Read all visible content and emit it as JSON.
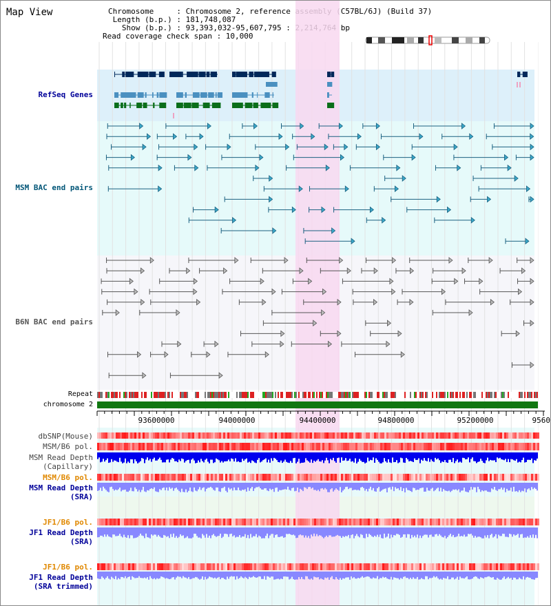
{
  "header": {
    "title": "Map View",
    "chromosome_line": "Chromosome     : Chromosome 2, reference assembly (C57BL/6J) (Build 37)",
    "length_line": " Length (b.p.) : 181,748,087",
    "show_line": "   Show (b.p.) : 93,393,032-95,607,795 : 2,214,764 bp",
    "coverage_line": "Read coverage check span : 10,000"
  },
  "tracks": {
    "refseq": {
      "label": "RefSeq Genes",
      "color": "#000080"
    },
    "msm_bac": {
      "label": "MSM BAC end pairs",
      "color": "#004488"
    },
    "b6n_bac": {
      "label": "B6N BAC end pairs",
      "color": "#555555"
    },
    "repeat": {
      "label": "Repeat"
    },
    "chromosome": {
      "label": "chromosome 2"
    },
    "dbsnp": {
      "label": "dbSNP(Mouse)"
    },
    "msm_b6_pol1": {
      "label": "MSM/B6 pol."
    },
    "msm_depth_cap": {
      "label": "MSM Read Depth",
      "sub": "(Capillary)"
    },
    "msm_b6_pol2": {
      "label": "MSM/B6 pol."
    },
    "msm_depth_sra": {
      "label": "MSM Read Depth",
      "sub": "(SRA)"
    },
    "jf1_pol1": {
      "label": "JF1/B6 pol."
    },
    "jf1_depth_sra": {
      "label": "JF1 Read Depth",
      "sub": "(SRA)"
    },
    "jf1_pol2": {
      "label": "JF1/B6 pol."
    },
    "jf1_depth_trim": {
      "label": "JF1 Read Depth",
      "sub": "(SRA trimmed)"
    }
  },
  "axis": {
    "ticks": [
      "93600000",
      "94000000",
      "94400000",
      "94800000",
      "95200000",
      "9560"
    ]
  },
  "colors": {
    "highlight": "#f8d8f0",
    "refseq_bg": "#ddf0fa",
    "msm_bg": "#e6fafa",
    "chrom_green": "#117711",
    "label_blue": "#000099",
    "label_orange": "#e08800",
    "depth_blue": "#0000ee",
    "depth_light": "#8888ff"
  }
}
